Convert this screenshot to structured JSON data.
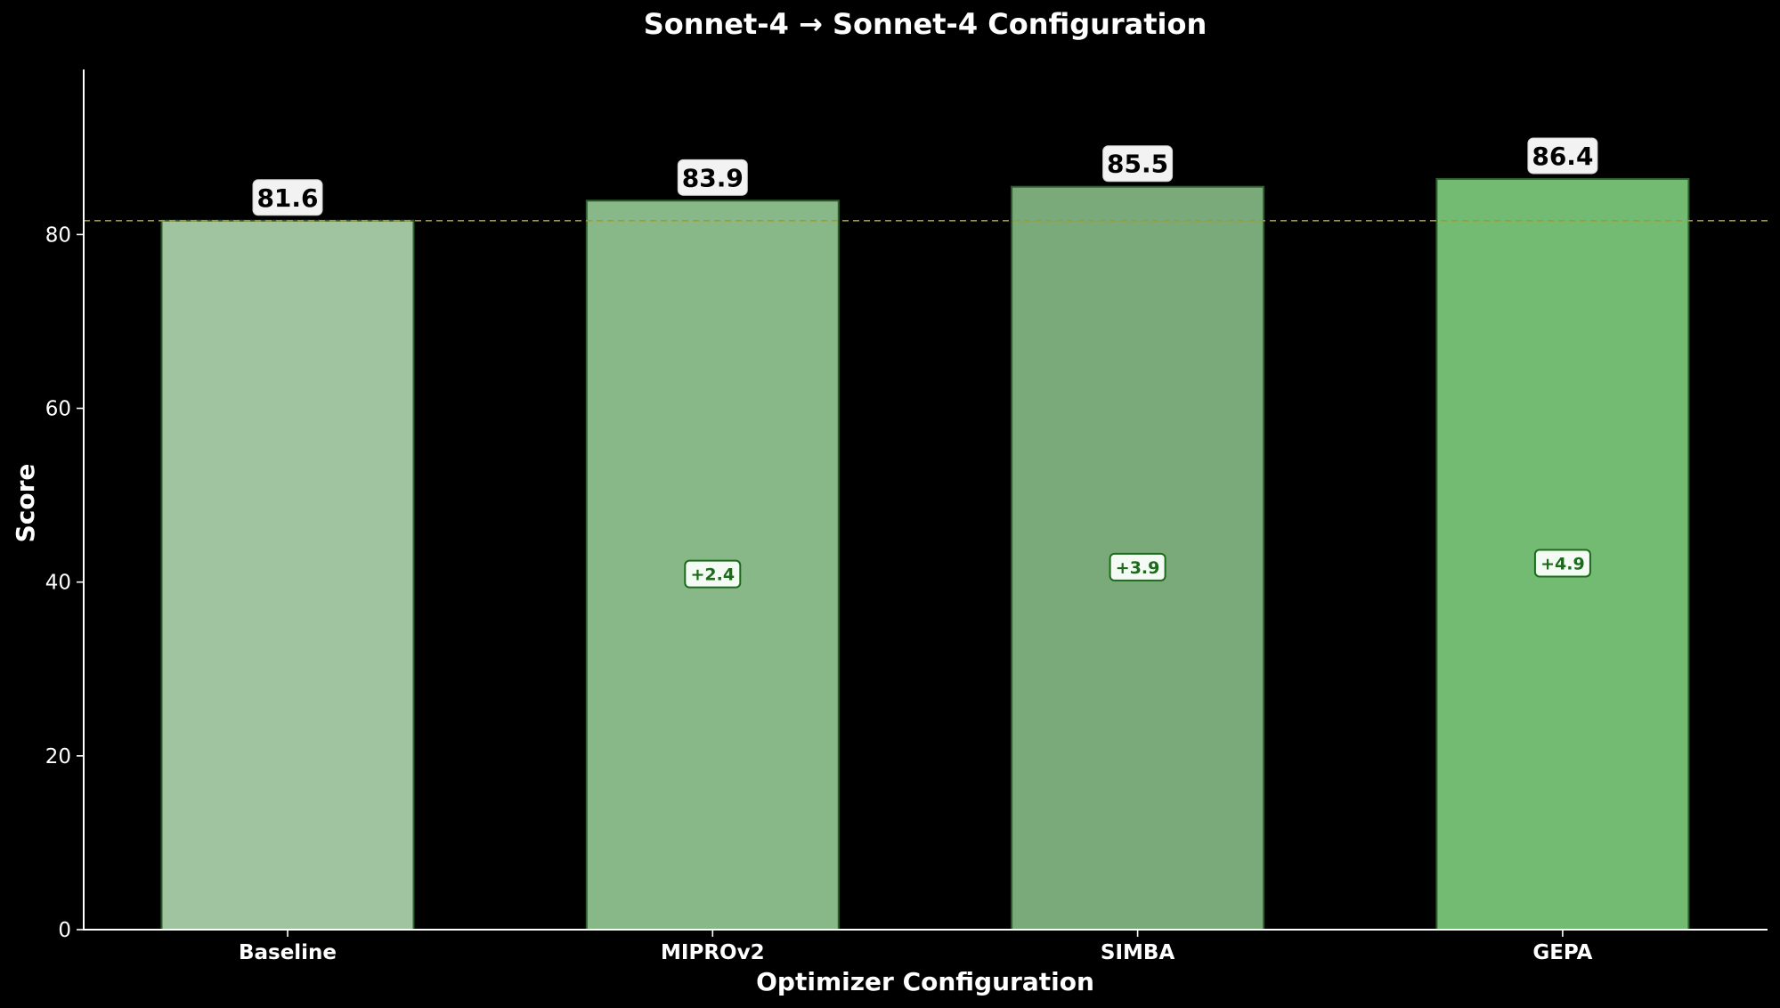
{
  "chart_data": {
    "type": "bar",
    "title": "Sonnet-4 → Sonnet-4 Configuration",
    "xlabel": "Optimizer Configuration",
    "ylabel": "Score",
    "categories": [
      "Baseline",
      "MIPROv2",
      "SIMBA",
      "GEPA"
    ],
    "values": [
      81.6,
      83.9,
      85.5,
      86.4
    ],
    "value_labels": [
      "81.6",
      "83.9",
      "85.5",
      "86.4"
    ],
    "delta_labels": [
      "",
      "+2.4",
      "+3.9",
      "+4.9"
    ],
    "ylim": [
      0,
      99
    ],
    "yticks": [
      0,
      20,
      40,
      60,
      80
    ],
    "ytick_labels": [
      "0",
      "20",
      "40",
      "60",
      "80"
    ],
    "baseline_reference": 81.6,
    "grid": false,
    "bar_colors": [
      "#a0c4a0",
      "#88b888",
      "#7aa97a",
      "#73bb73"
    ],
    "bar_edge_color": "#2e5e2e",
    "reference_line_color": "#a09a30",
    "delta_text_color": "#1a6b1a",
    "background_color": "#000000"
  }
}
